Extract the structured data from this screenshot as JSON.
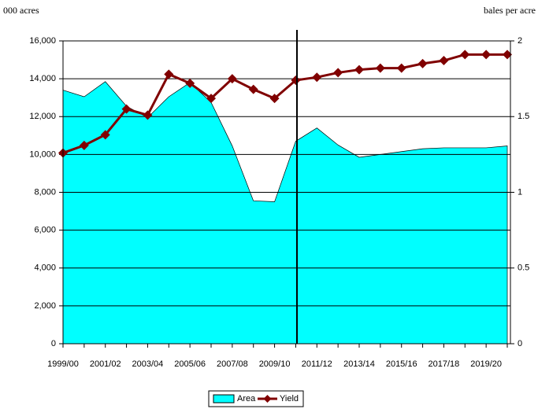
{
  "chart_data": {
    "type": "area_line",
    "y_label": "000 acres",
    "y2_label": "bales per acre",
    "categories": [
      "1999/00",
      null,
      "2001/02",
      null,
      "2003/04",
      null,
      "2005/06",
      null,
      "2007/08",
      null,
      "2009/10",
      null,
      "2011/12",
      null,
      "2013/14",
      null,
      "2015/16",
      null,
      "2017/18",
      null,
      "2019/20",
      null
    ],
    "series": [
      {
        "name": "Area",
        "color": "#00ffff",
        "values": [
          13400,
          13050,
          13850,
          12550,
          11950,
          13050,
          13800,
          12750,
          10450,
          7550,
          7500,
          10700,
          11400,
          10500,
          9850,
          10000,
          10150,
          10300,
          10350,
          10350,
          10350,
          10450
        ]
      },
      {
        "name": "Yield",
        "color": "#800000",
        "axis": "y2",
        "values": [
          1.26,
          1.31,
          1.38,
          1.55,
          1.51,
          1.78,
          1.72,
          1.62,
          1.75,
          1.68,
          1.62,
          1.74,
          1.76,
          1.79,
          1.81,
          1.82,
          1.82,
          1.85,
          1.87,
          1.91,
          1.91,
          1.91
        ]
      }
    ],
    "ylim": [
      0,
      16000
    ],
    "yticks": [
      0,
      {
        "value": 2000,
        "label": "2,000"
      },
      {
        "value": 4000,
        "label": "4,000"
      },
      {
        "value": 6000,
        "label": "6,000"
      },
      {
        "value": 8000,
        "label": "8,000"
      },
      {
        "value": 10000,
        "label": "10,000"
      },
      {
        "value": 12000,
        "label": "12,000"
      },
      {
        "value": 14000,
        "label": "14,000"
      },
      {
        "value": 16000,
        "label": "16,000"
      }
    ],
    "y2lim": [
      0,
      2
    ],
    "y2ticks": [
      0,
      0.5,
      1,
      1.5,
      2
    ],
    "grid": true,
    "legend": "bottom"
  }
}
